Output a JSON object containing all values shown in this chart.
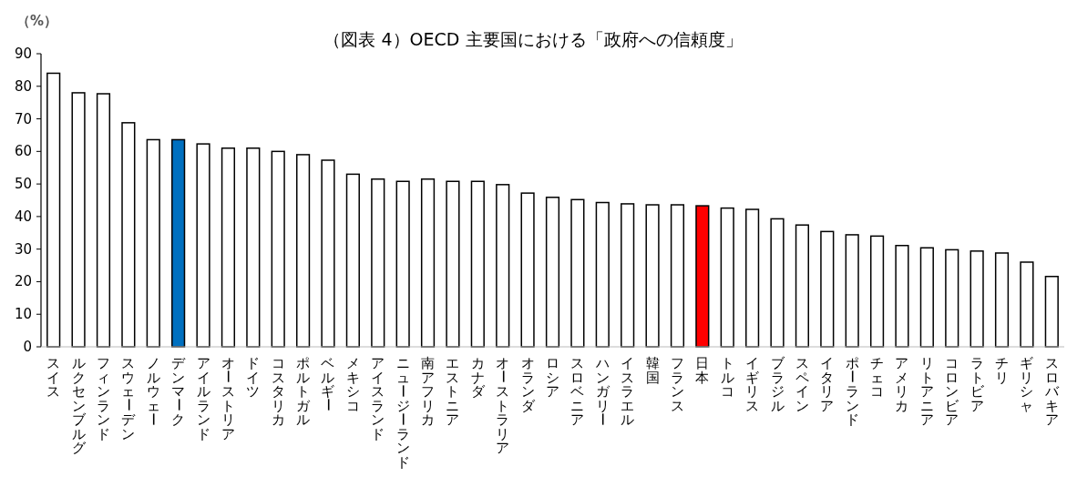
{
  "chart_data": {
    "type": "bar",
    "title": "（図表 4）OECD 主要国における「政府への信頼度」",
    "ylabel": "（%）",
    "categories": [
      "スイス",
      "ルクセンブルグ",
      "フィンランド",
      "スウェーデン",
      "ノルウェー",
      "デンマーク",
      "アイルランド",
      "オーストリア",
      "ドイツ",
      "コスタリカ",
      "ポルトガル",
      "ベルギー",
      "メキシコ",
      "アイスランド",
      "ニュージーランド",
      "南アフリカ",
      "エストニア",
      "カナダ",
      "オーストラリア",
      "オランダ",
      "ロシア",
      "スロベニア",
      "ハンガリー",
      "イスラエル",
      "韓国",
      "フランス",
      "日本",
      "トルコ",
      "イギリス",
      "ブラジル",
      "スペイン",
      "イタリア",
      "ポーランド",
      "チェコ",
      "アメリカ",
      "リトアニア",
      "コロンビア",
      "ラトビア",
      "チリ",
      "ギリシャ",
      "スロバキア"
    ],
    "values": [
      84,
      78,
      77.7,
      68.8,
      63.6,
      63.6,
      62.3,
      61,
      61,
      60,
      59,
      57.3,
      53,
      51.5,
      50.8,
      51.5,
      50.8,
      50.8,
      49.8,
      47.2,
      45.9,
      45.2,
      44.3,
      43.9,
      43.6,
      43.6,
      43.3,
      42.6,
      42.2,
      39.3,
      37.4,
      35.4,
      34.4,
      34,
      31.1,
      30.4,
      29.8,
      29.4,
      28.8,
      26,
      21.6
    ],
    "colors": [
      "#ffffff",
      "#ffffff",
      "#ffffff",
      "#ffffff",
      "#ffffff",
      "#0070c0",
      "#ffffff",
      "#ffffff",
      "#ffffff",
      "#ffffff",
      "#ffffff",
      "#ffffff",
      "#ffffff",
      "#ffffff",
      "#ffffff",
      "#ffffff",
      "#ffffff",
      "#ffffff",
      "#ffffff",
      "#ffffff",
      "#ffffff",
      "#ffffff",
      "#ffffff",
      "#ffffff",
      "#ffffff",
      "#ffffff",
      "#ff0000",
      "#ffffff",
      "#ffffff",
      "#ffffff",
      "#ffffff",
      "#ffffff",
      "#ffffff",
      "#ffffff",
      "#ffffff",
      "#ffffff",
      "#ffffff",
      "#ffffff",
      "#ffffff",
      "#ffffff",
      "#ffffff"
    ],
    "ylim": [
      0,
      90
    ],
    "yticks": [
      0,
      10,
      20,
      30,
      40,
      50,
      60,
      70,
      80,
      90
    ]
  }
}
